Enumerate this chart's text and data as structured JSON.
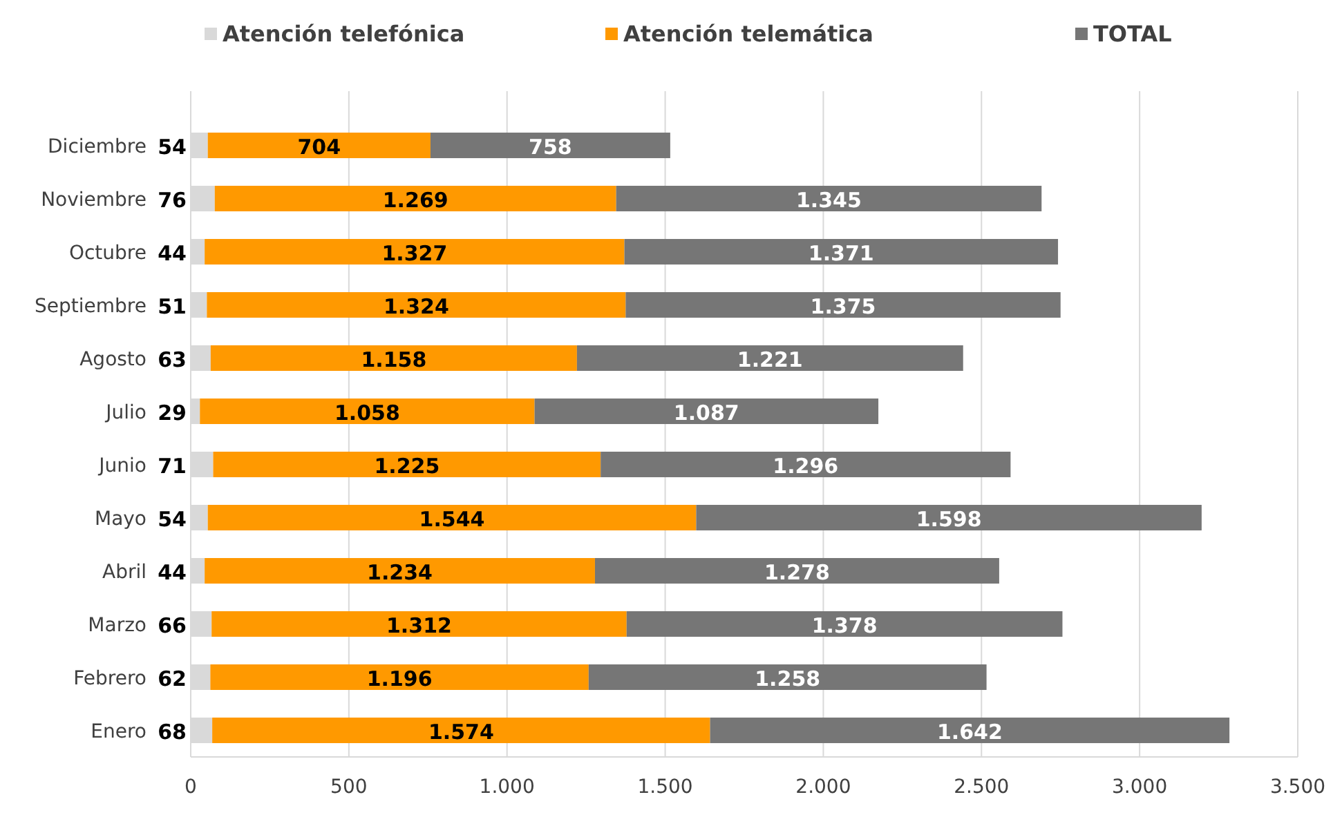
{
  "chart_data": {
    "type": "bar",
    "orientation": "horizontal",
    "stacked": true,
    "categories": [
      "Diciembre",
      "Noviembre",
      "Octubre",
      "Septiembre",
      "Agosto",
      "Julio",
      "Junio",
      "Mayo",
      "Abril",
      "Marzo",
      "Febrero",
      "Enero"
    ],
    "series": [
      {
        "name": "Atención telefónica",
        "color": "#d9d9d9",
        "values": [
          54,
          76,
          44,
          51,
          63,
          29,
          71,
          54,
          44,
          66,
          62,
          68
        ],
        "value_labels": [
          "54",
          "76",
          "44",
          "51",
          "63",
          "29",
          "71",
          "54",
          "44",
          "66",
          "62",
          "68"
        ]
      },
      {
        "name": "Atención telemática",
        "color": "#ff9900",
        "values": [
          704,
          1269,
          1327,
          1324,
          1158,
          1058,
          1225,
          1544,
          1234,
          1312,
          1196,
          1574
        ],
        "value_labels": [
          "704",
          "1.269",
          "1.327",
          "1.324",
          "1.158",
          "1.058",
          "1.225",
          "1.544",
          "1.234",
          "1.312",
          "1.196",
          "1.574"
        ]
      },
      {
        "name": "TOTAL",
        "color": "#767676",
        "values": [
          758,
          1345,
          1371,
          1375,
          1221,
          1087,
          1296,
          1598,
          1278,
          1378,
          1258,
          1642
        ],
        "value_labels": [
          "758",
          "1.345",
          "1.371",
          "1.375",
          "1.221",
          "1.087",
          "1.296",
          "1.598",
          "1.278",
          "1.378",
          "1.258",
          "1.642"
        ]
      }
    ],
    "xlim": [
      0,
      3500
    ],
    "xticks": [
      0,
      500,
      {
        "value": 1000,
        "label": "1.000"
      },
      {
        "value": 1500,
        "label": "1.500"
      },
      {
        "value": 2000,
        "label": "2.000"
      },
      {
        "value": 2500,
        "label": "2.500"
      },
      {
        "value": 3000,
        "label": "3.000"
      },
      {
        "value": 3500,
        "label": "3.500"
      }
    ],
    "grid": "x",
    "legend": "top"
  }
}
